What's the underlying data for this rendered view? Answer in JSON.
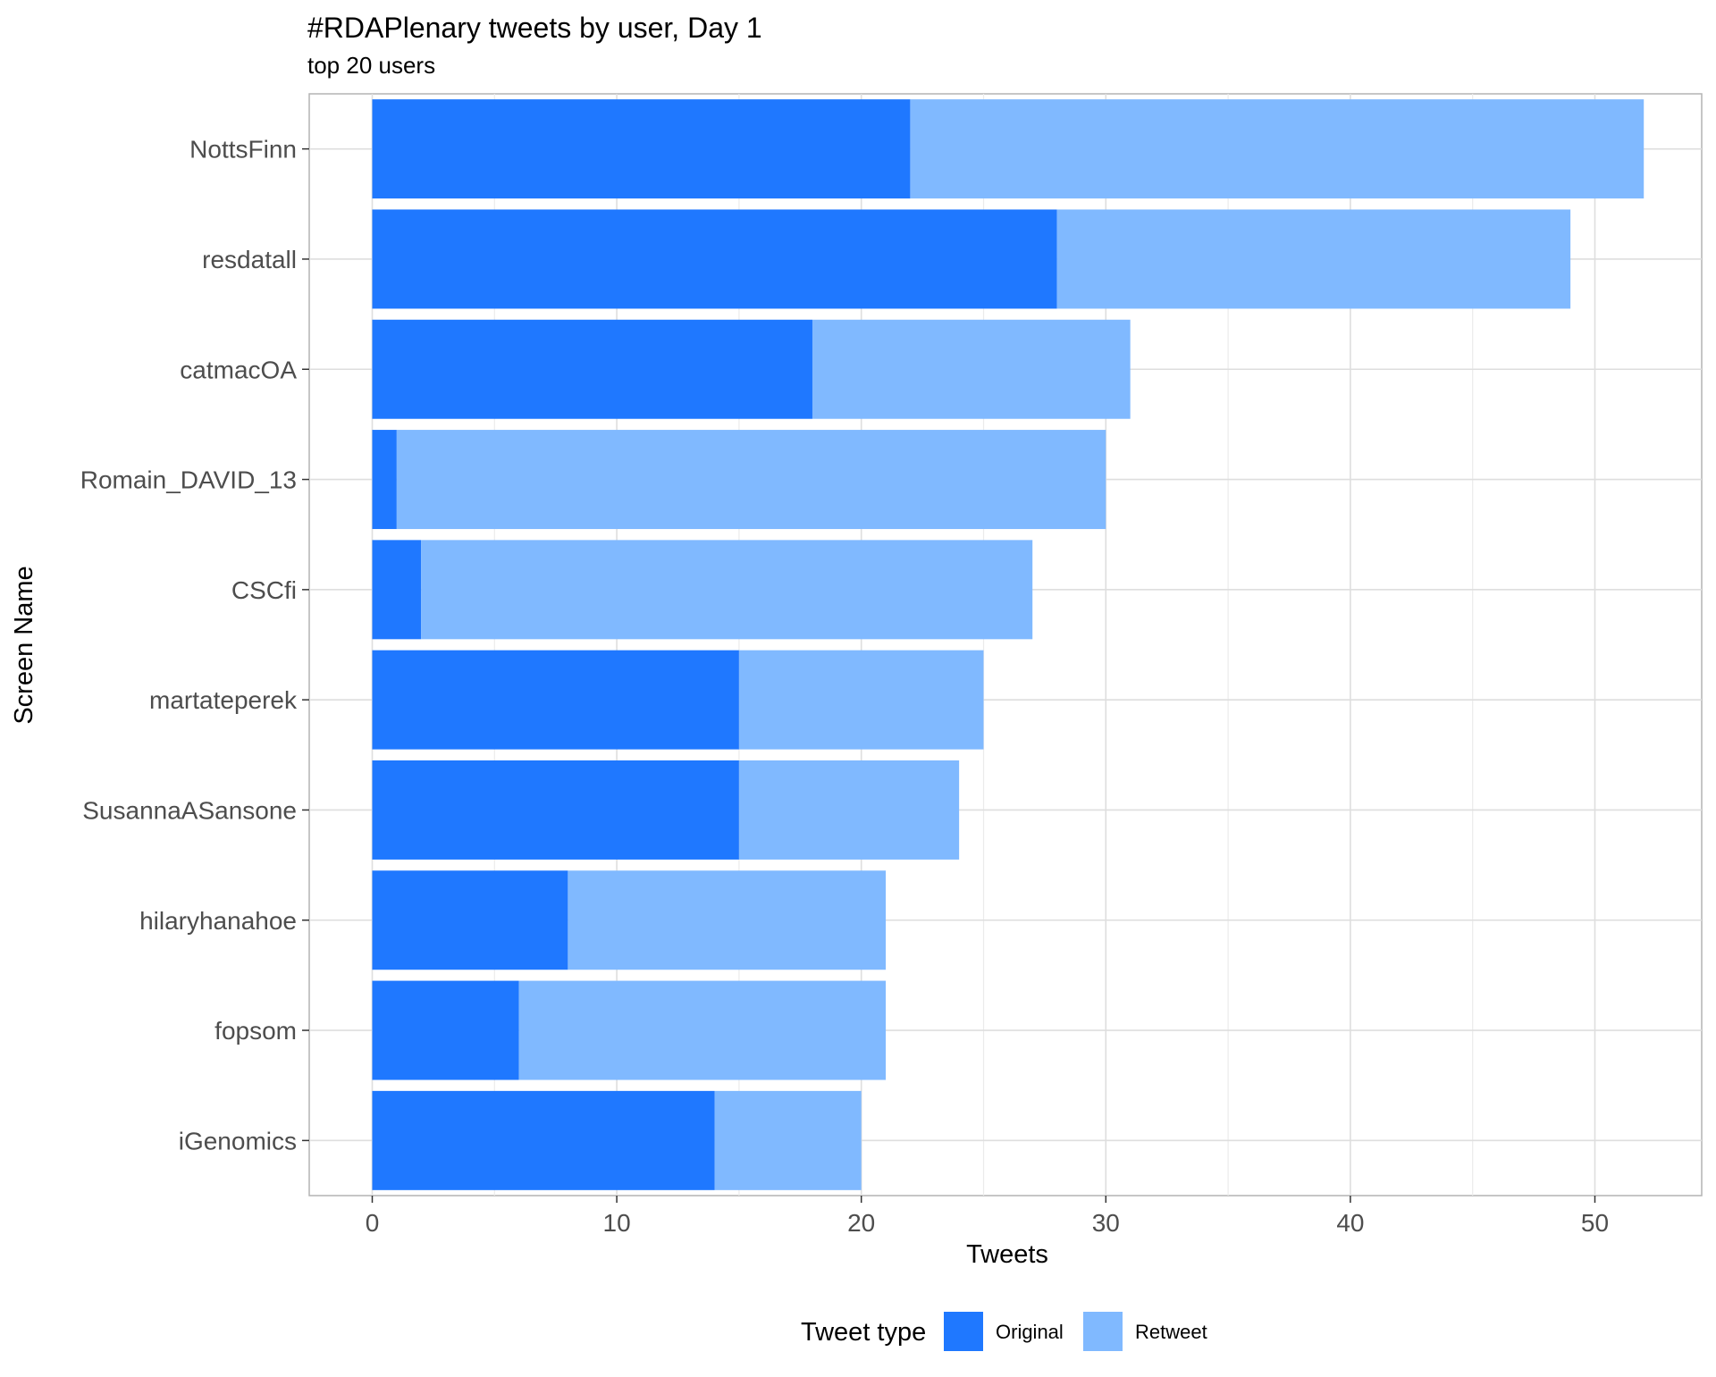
{
  "chart_data": {
    "type": "bar",
    "orientation": "horizontal",
    "stacked": true,
    "title": "#RDAPlenary tweets by user, Day 1",
    "subtitle": "top 20 users",
    "xlabel": "Tweets",
    "ylabel": "Screen Name",
    "xlim": [
      0,
      52
    ],
    "xticks": [
      0,
      10,
      20,
      30,
      40,
      50
    ],
    "grid": true,
    "legend": {
      "title": "Tweet type",
      "position": "bottom"
    },
    "categories": [
      "NottsFinn",
      "resdatall",
      "catmacOA",
      "Romain_DAVID_13",
      "CSCfi",
      "martateperek",
      "SusannaASansone",
      "hilaryhanahoe",
      "fopsom",
      "iGenomics"
    ],
    "series": [
      {
        "name": "Original",
        "color": "#1f78ff",
        "values": [
          22,
          28,
          18,
          1,
          2,
          15,
          15,
          8,
          6,
          14
        ]
      },
      {
        "name": "Retweet",
        "color": "#80b9ff",
        "values": [
          30,
          21,
          13,
          29,
          25,
          10,
          9,
          13,
          15,
          6
        ]
      }
    ]
  }
}
